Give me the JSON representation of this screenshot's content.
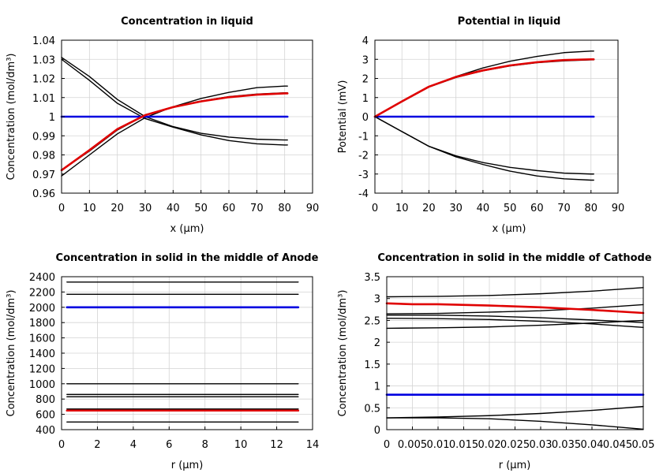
{
  "chart_data": [
    {
      "type": "line",
      "title": "Concentration in liquid",
      "xlabel": "x (µm)",
      "ylabel": "Concentration (mol/dm³)",
      "xlim": [
        0,
        90
      ],
      "ylim": [
        0.96,
        1.04
      ],
      "xticks": [
        0,
        10,
        20,
        30,
        40,
        50,
        60,
        70,
        80,
        90
      ],
      "yticks": [
        0.96,
        0.97,
        0.98,
        0.99,
        1,
        1.01,
        1.02,
        1.03,
        1.04
      ],
      "xtick_labels": [
        "0",
        "10",
        "20",
        "30",
        "40",
        "50",
        "60",
        "70",
        "80",
        "90"
      ],
      "ytick_labels": [
        "0.96",
        "0.97",
        "0.98",
        "0.99",
        "1",
        "1.01",
        "1.02",
        "1.03",
        "1.04"
      ],
      "grid": true,
      "series": [
        {
          "name": "black-1",
          "color": "#000000",
          "x": [
            0,
            10,
            20,
            30,
            40,
            50,
            60,
            70,
            80,
            81
          ],
          "y": [
            1.031,
            1.021,
            1.009,
            1.0,
            0.9948,
            0.9913,
            0.9893,
            0.9882,
            0.9878,
            0.9878
          ]
        },
        {
          "name": "black-2",
          "color": "#000000",
          "x": [
            0,
            10,
            20,
            30,
            40,
            50,
            60,
            70,
            80,
            81
          ],
          "y": [
            1.03,
            1.019,
            1.007,
            0.999,
            0.9945,
            0.9905,
            0.9875,
            0.9858,
            0.9852,
            0.9852
          ]
        },
        {
          "name": "black-3",
          "color": "#000000",
          "x": [
            0,
            10,
            20,
            30,
            40,
            50,
            60,
            70,
            80,
            81
          ],
          "y": [
            0.969,
            0.98,
            0.991,
            0.9995,
            1.0052,
            1.0095,
            1.0127,
            1.0152,
            1.016,
            1.016
          ]
        },
        {
          "name": "black-4",
          "color": "#000000",
          "x": [
            0,
            10,
            20,
            30,
            40,
            50,
            60,
            70,
            80,
            81
          ],
          "y": [
            0.972,
            0.982,
            0.993,
            1.0008,
            1.0052,
            1.0082,
            1.0105,
            1.0118,
            1.0125,
            1.0125
          ]
        },
        {
          "name": "blue",
          "color": "#0000e0",
          "width": 2.6,
          "x": [
            0,
            81
          ],
          "y": [
            1.0,
            1.0
          ]
        },
        {
          "name": "red",
          "color": "#e00000",
          "width": 2.6,
          "x": [
            0,
            10,
            20,
            30,
            40,
            50,
            60,
            70,
            80,
            81
          ],
          "y": [
            0.972,
            0.9825,
            0.9935,
            1.0008,
            1.005,
            1.008,
            1.0102,
            1.0115,
            1.0122,
            1.0122
          ]
        }
      ]
    },
    {
      "type": "line",
      "title": "Potential in liquid",
      "xlabel": "x (µm)",
      "ylabel": "Potential (mV)",
      "xlim": [
        0,
        90
      ],
      "ylim": [
        -4,
        4
      ],
      "xticks": [
        0,
        10,
        20,
        30,
        40,
        50,
        60,
        70,
        80,
        90
      ],
      "yticks": [
        -4,
        -3,
        -2,
        -1,
        0,
        1,
        2,
        3,
        4
      ],
      "xtick_labels": [
        "0",
        "10",
        "20",
        "30",
        "40",
        "50",
        "60",
        "70",
        "80",
        "90"
      ],
      "ytick_labels": [
        "-4",
        "-3",
        "-2",
        "-1",
        "0",
        "1",
        "2",
        "3",
        "4"
      ],
      "grid": true,
      "series": [
        {
          "name": "black-1",
          "color": "#000000",
          "x": [
            0,
            10,
            20,
            30,
            40,
            50,
            60,
            70,
            80,
            81
          ],
          "y": [
            0,
            0.78,
            1.55,
            2.1,
            2.55,
            2.9,
            3.15,
            3.35,
            3.43,
            3.43
          ]
        },
        {
          "name": "black-2",
          "color": "#000000",
          "x": [
            0,
            10,
            20,
            30,
            40,
            50,
            60,
            70,
            80,
            81
          ],
          "y": [
            0,
            0.78,
            1.55,
            2.05,
            2.4,
            2.65,
            2.82,
            2.92,
            2.97,
            2.97
          ]
        },
        {
          "name": "black-3",
          "color": "#000000",
          "x": [
            0,
            10,
            20,
            30,
            40,
            50,
            60,
            70,
            80,
            81
          ],
          "y": [
            0,
            -0.78,
            -1.55,
            -2.05,
            -2.4,
            -2.65,
            -2.82,
            -2.95,
            -3.0,
            -3.0
          ]
        },
        {
          "name": "black-4",
          "color": "#000000",
          "x": [
            0,
            10,
            20,
            30,
            40,
            50,
            60,
            70,
            80,
            81
          ],
          "y": [
            0,
            -0.78,
            -1.55,
            -2.1,
            -2.5,
            -2.85,
            -3.1,
            -3.25,
            -3.32,
            -3.32
          ]
        },
        {
          "name": "blue",
          "color": "#0000e0",
          "width": 2.6,
          "x": [
            0,
            81
          ],
          "y": [
            0,
            0
          ]
        },
        {
          "name": "red",
          "color": "#e00000",
          "width": 2.6,
          "x": [
            0,
            10,
            20,
            30,
            40,
            50,
            60,
            70,
            80,
            81
          ],
          "y": [
            0,
            0.8,
            1.57,
            2.08,
            2.42,
            2.68,
            2.85,
            2.96,
            3.0,
            3.0
          ]
        }
      ]
    },
    {
      "type": "line",
      "title": "Concentration in solid in the middle of Anode",
      "xlabel": "r (µm)",
      "ylabel": "Concentration (mol/dm³)",
      "xlim": [
        0,
        14
      ],
      "ylim": [
        400,
        2400
      ],
      "xticks": [
        0,
        2,
        4,
        6,
        8,
        10,
        12,
        14
      ],
      "yticks": [
        400,
        600,
        800,
        1000,
        1200,
        1400,
        1600,
        1800,
        2000,
        2200,
        2400
      ],
      "xtick_labels": [
        "0",
        "2",
        "4",
        "6",
        "8",
        "10",
        "12",
        "14"
      ],
      "ytick_labels": [
        "400",
        "600",
        "800",
        "1000",
        "1200",
        "1400",
        "1600",
        "1800",
        "2000",
        "2200",
        "2400"
      ],
      "grid": true,
      "series": [
        {
          "name": "black-1",
          "color": "#000000",
          "x": [
            0.3,
            13.2
          ],
          "y": [
            2330,
            2330
          ]
        },
        {
          "name": "black-2",
          "color": "#000000",
          "x": [
            0.3,
            13.2
          ],
          "y": [
            2170,
            2170
          ]
        },
        {
          "name": "black-3",
          "color": "#000000",
          "x": [
            0.3,
            13.2
          ],
          "y": [
            1000,
            1000
          ]
        },
        {
          "name": "black-4",
          "color": "#000000",
          "x": [
            0.3,
            13.2
          ],
          "y": [
            860,
            860
          ]
        },
        {
          "name": "black-5",
          "color": "#000000",
          "x": [
            0.3,
            13.2
          ],
          "y": [
            830,
            830
          ]
        },
        {
          "name": "black-6",
          "color": "#000000",
          "x": [
            0.3,
            13.2
          ],
          "y": [
            670,
            670
          ]
        },
        {
          "name": "black-7",
          "color": "#000000",
          "x": [
            0.3,
            13.2
          ],
          "y": [
            500,
            500
          ]
        },
        {
          "name": "blue",
          "color": "#0000e0",
          "width": 2.6,
          "x": [
            0.3,
            13.2
          ],
          "y": [
            2000,
            2000
          ]
        },
        {
          "name": "red",
          "color": "#e00000",
          "width": 2.6,
          "x": [
            0.3,
            13.2
          ],
          "y": [
            650,
            650
          ]
        }
      ]
    },
    {
      "type": "line",
      "title": "Concentration in solid in the middle of Cathode",
      "xlabel": "r (µm)",
      "ylabel": "Concentration (mol/dm³)",
      "xlim": [
        0,
        0.05
      ],
      "ylim": [
        0,
        3.5
      ],
      "xticks": [
        0,
        0.005,
        0.01,
        0.015,
        0.02,
        0.025,
        0.03,
        0.035,
        0.04,
        0.045,
        0.05
      ],
      "yticks": [
        0,
        0.5,
        1,
        1.5,
        2,
        2.5,
        3,
        3.5
      ],
      "xtick_labels": [
        "0",
        "0.005",
        "0.01",
        "0.015",
        "0.02",
        "0.025",
        "0.03",
        "0.035",
        "0.04",
        "0.045",
        "0.05"
      ],
      "ytick_labels": [
        "0",
        "0.5",
        "1",
        "1.5",
        "2",
        "2.5",
        "3",
        "3.5"
      ],
      "grid": true,
      "series": [
        {
          "name": "black-1",
          "color": "#000000",
          "x": [
            0,
            0.01,
            0.02,
            0.03,
            0.04,
            0.05
          ],
          "y": [
            3.04,
            3.05,
            3.07,
            3.11,
            3.17,
            3.25
          ]
        },
        {
          "name": "black-2",
          "color": "#000000",
          "x": [
            0,
            0.01,
            0.02,
            0.03,
            0.04,
            0.05
          ],
          "y": [
            2.65,
            2.66,
            2.69,
            2.72,
            2.78,
            2.86
          ]
        },
        {
          "name": "black-3",
          "color": "#000000",
          "x": [
            0,
            0.01,
            0.02,
            0.03,
            0.04,
            0.05
          ],
          "y": [
            2.62,
            2.62,
            2.6,
            2.56,
            2.51,
            2.45
          ]
        },
        {
          "name": "black-4",
          "color": "#000000",
          "x": [
            0,
            0.01,
            0.02,
            0.03,
            0.04,
            0.05
          ],
          "y": [
            2.55,
            2.54,
            2.52,
            2.48,
            2.42,
            2.34
          ]
        },
        {
          "name": "black-5",
          "color": "#000000",
          "x": [
            0,
            0.01,
            0.02,
            0.03,
            0.04,
            0.05
          ],
          "y": [
            2.32,
            2.33,
            2.35,
            2.39,
            2.44,
            2.5
          ]
        },
        {
          "name": "black-6",
          "color": "#000000",
          "x": [
            0,
            0.01,
            0.02,
            0.03,
            0.04,
            0.05
          ],
          "y": [
            0.27,
            0.29,
            0.32,
            0.37,
            0.44,
            0.53
          ]
        },
        {
          "name": "black-7",
          "color": "#000000",
          "x": [
            0,
            0.01,
            0.02,
            0.03,
            0.04,
            0.05
          ],
          "y": [
            0.27,
            0.27,
            0.25,
            0.19,
            0.11,
            0.01
          ]
        },
        {
          "name": "blue",
          "color": "#0000e0",
          "width": 2.6,
          "x": [
            0,
            0.05
          ],
          "y": [
            0.8,
            0.8
          ]
        },
        {
          "name": "red",
          "color": "#e00000",
          "width": 2.6,
          "x": [
            0,
            0.005,
            0.01,
            0.02,
            0.03,
            0.04,
            0.05
          ],
          "y": [
            2.89,
            2.87,
            2.87,
            2.84,
            2.8,
            2.74,
            2.67
          ]
        }
      ]
    }
  ]
}
